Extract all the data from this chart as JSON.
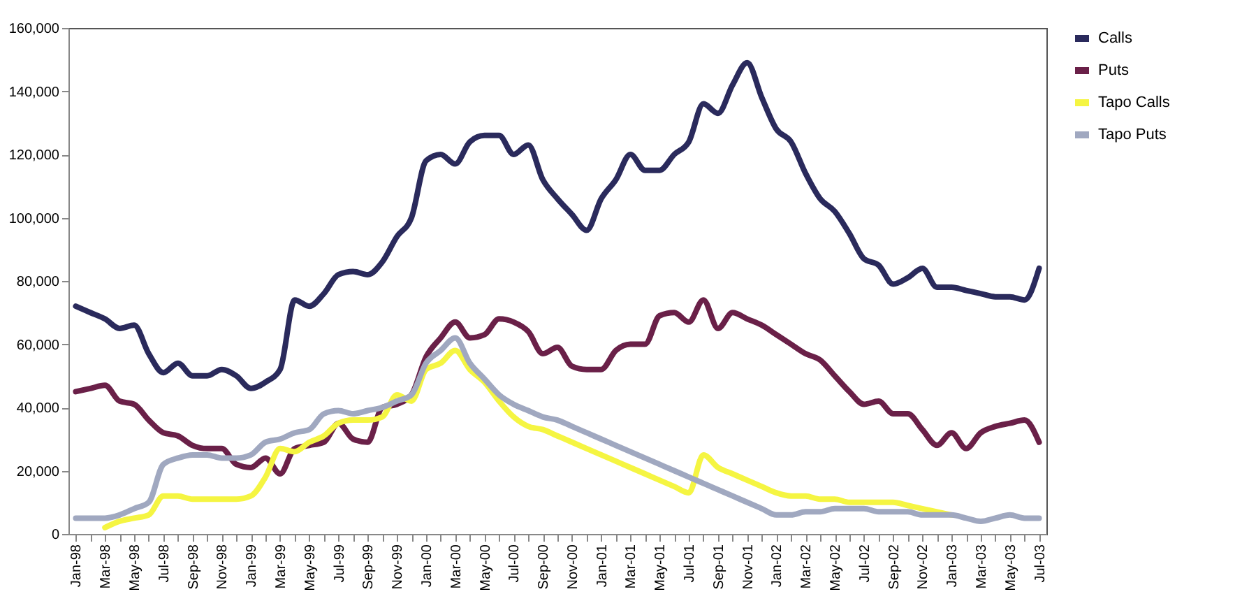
{
  "chart_data": {
    "type": "line",
    "categories": [
      "Jan-98",
      null,
      "Mar-98",
      null,
      "May-98",
      null,
      "Jul-98",
      null,
      "Sep-98",
      null,
      "Nov-98",
      null,
      "Jan-99",
      null,
      "Mar-99",
      null,
      "May-99",
      null,
      "Jul-99",
      null,
      "Sep-99",
      null,
      "Nov-99",
      null,
      "Jan-00",
      null,
      "Mar-00",
      null,
      "May-00",
      null,
      "Jul-00",
      null,
      "Sep-00",
      null,
      "Nov-00",
      null,
      "Jan-01",
      null,
      "Mar-01",
      null,
      "May-01",
      null,
      "Jul-01",
      null,
      "Sep-01",
      null,
      "Nov-01",
      null,
      "Jan-02",
      null,
      "Mar-02",
      null,
      "May-02",
      null,
      "Jul-02",
      null,
      "Sep-02",
      null,
      "Nov-02",
      null,
      "Jan-03",
      null,
      "Mar-03",
      null,
      "May-03",
      null,
      "Jul-03"
    ],
    "series": [
      {
        "name": "Calls",
        "color": "#2a2a5c",
        "values": [
          72000,
          70000,
          68000,
          65000,
          66000,
          57000,
          51000,
          54000,
          50000,
          50000,
          52000,
          50000,
          46000,
          48000,
          52000,
          74000,
          72000,
          76000,
          82000,
          83000,
          82000,
          86000,
          94000,
          100000,
          118000,
          120000,
          117000,
          124000,
          126000,
          126000,
          120000,
          123000,
          112000,
          106000,
          101000,
          96000,
          106000,
          112000,
          120000,
          115000,
          115000,
          120000,
          124000,
          136000,
          133000,
          142000,
          149000,
          138000,
          128000,
          124000,
          114000,
          106000,
          102000,
          95000,
          87000,
          85000,
          79000,
          81000,
          84000,
          78000,
          78000,
          77000,
          76000,
          75000,
          75000,
          74000,
          84000
        ]
      },
      {
        "name": "Puts",
        "color": "#6a2048",
        "values": [
          45000,
          46000,
          47000,
          42000,
          41000,
          36000,
          32000,
          31000,
          28000,
          27000,
          27000,
          22000,
          21000,
          24000,
          19000,
          27000,
          28000,
          29000,
          35000,
          30000,
          29000,
          40000,
          41000,
          44000,
          56000,
          62000,
          67000,
          62000,
          63000,
          68000,
          67000,
          64000,
          57000,
          59000,
          53000,
          52000,
          52000,
          58000,
          60000,
          60000,
          69000,
          70000,
          67000,
          74000,
          65000,
          70000,
          68000,
          66000,
          63000,
          60000,
          57000,
          55000,
          50000,
          45000,
          41000,
          42000,
          38000,
          38000,
          33000,
          28000,
          32000,
          27000,
          32000,
          34000,
          35000,
          36000,
          29000
        ]
      },
      {
        "name": "Tapo Calls",
        "color": "#f5f542",
        "values": [
          null,
          null,
          2000,
          4000,
          5000,
          6000,
          12000,
          12000,
          11000,
          11000,
          11000,
          11000,
          12000,
          18000,
          27000,
          26000,
          29000,
          31000,
          35000,
          36000,
          36000,
          37000,
          44000,
          42000,
          52000,
          54000,
          58000,
          52000,
          48000,
          42000,
          37000,
          34000,
          33000,
          31000,
          29000,
          27000,
          25000,
          23000,
          21000,
          19000,
          17000,
          15000,
          13000,
          25000,
          21000,
          19000,
          17000,
          15000,
          13000,
          12000,
          12000,
          11000,
          11000,
          10000,
          10000,
          10000,
          10000,
          9000,
          8000,
          7000,
          6000,
          null,
          null,
          null,
          null,
          null,
          null
        ]
      },
      {
        "name": "Tapo Puts",
        "color": "#a0a8c0",
        "values": [
          5000,
          5000,
          5000,
          6000,
          8000,
          10000,
          22000,
          24000,
          25000,
          25000,
          24000,
          24000,
          25000,
          29000,
          30000,
          32000,
          33000,
          38000,
          39000,
          38000,
          39000,
          40000,
          42000,
          44000,
          54000,
          58000,
          62000,
          54000,
          49000,
          44000,
          41000,
          39000,
          37000,
          36000,
          34000,
          32000,
          30000,
          28000,
          26000,
          24000,
          22000,
          20000,
          18000,
          16000,
          14000,
          12000,
          10000,
          8000,
          6000,
          6000,
          7000,
          7000,
          8000,
          8000,
          8000,
          7000,
          7000,
          7000,
          6000,
          6000,
          6000,
          5000,
          4000,
          5000,
          6000,
          5000,
          5000
        ]
      }
    ],
    "ylim": [
      0,
      160000
    ],
    "yticks": [
      {
        "value": 0,
        "label": "0"
      },
      {
        "value": 20000,
        "label": "20,000"
      },
      {
        "value": 40000,
        "label": "40,000"
      },
      {
        "value": 60000,
        "label": "60,000"
      },
      {
        "value": 80000,
        "label": "80,000"
      },
      {
        "value": 100000,
        "label": "100,000"
      },
      {
        "value": 120000,
        "label": "120,000"
      },
      {
        "value": 140000,
        "label": "140,000"
      },
      {
        "value": 160000,
        "label": "160,000"
      }
    ],
    "legend": "right",
    "grid": false
  }
}
